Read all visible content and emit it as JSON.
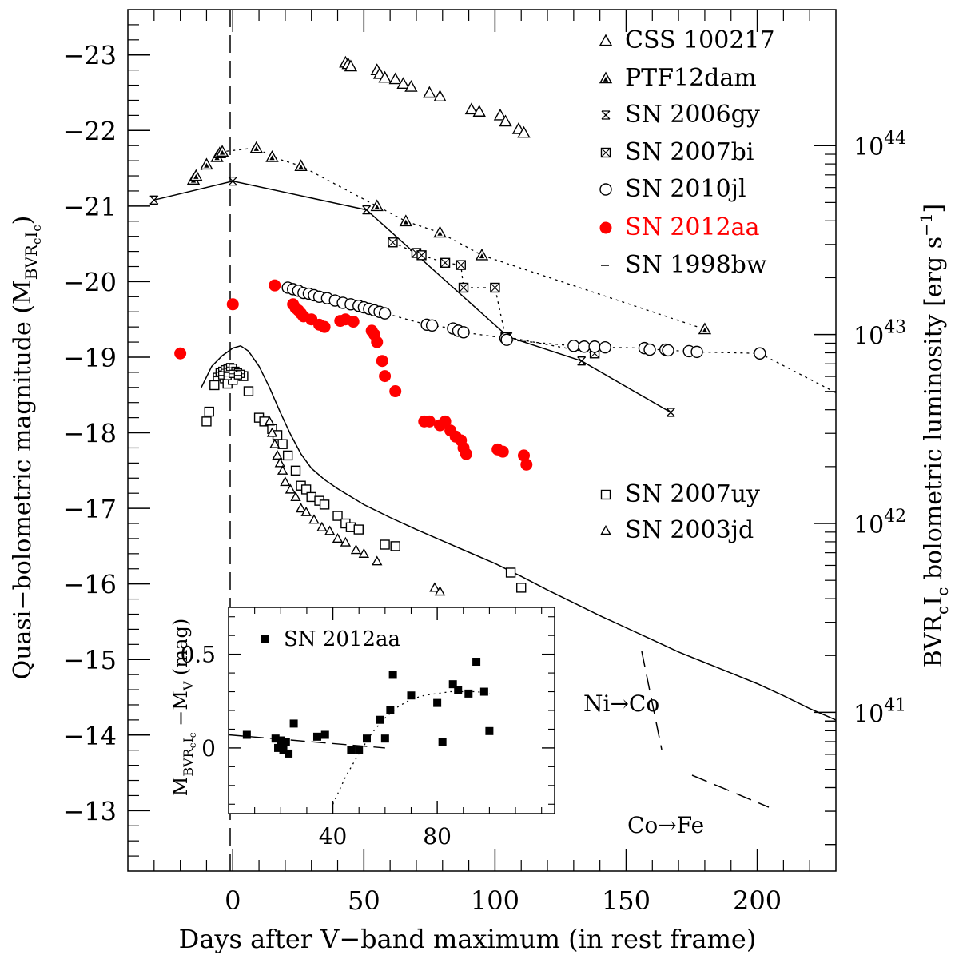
{
  "chart_data": {
    "type": "scatter",
    "xlabel": "Days after V−band maximum (in rest frame)",
    "ylabel": "Quasi−bolometric magnitude (M",
    "ylabel_sub": "BVR",
    "ylabel_subsub": "c",
    "ylabel_tail": "I",
    "ylabel_tail_sub": "c",
    "ylabel_close": ")",
    "right_ylabel": "BVR",
    "right_ylabel_sub": "c",
    "right_ylabel_tail": "I",
    "right_ylabel_tail_sub": "c",
    "right_ylabel_rest": " bolometric luminosity [erg s",
    "right_ylabel_sup": "−1",
    "right_ylabel_close": "]",
    "xlim": [
      -40,
      230
    ],
    "ylim": [
      -12.2,
      -23.6
    ],
    "x_ticks": [
      0,
      50,
      100,
      150,
      200
    ],
    "x_tick_labels": [
      "0",
      "50",
      "100",
      "150",
      "200"
    ],
    "y_ticks": [
      -13,
      -14,
      -15,
      -16,
      -17,
      -18,
      -19,
      -20,
      -21,
      -22,
      -23
    ],
    "y_tick_labels": [
      "−13",
      "−14",
      "−15",
      "−16",
      "−17",
      "−18",
      "−19",
      "−20",
      "−21",
      "−22",
      "−23"
    ],
    "right_ticks": [
      {
        "mag": -14.3,
        "base": "10",
        "exp": "41"
      },
      {
        "mag": -16.8,
        "base": "10",
        "exp": "42"
      },
      {
        "mag": -19.3,
        "base": "10",
        "exp": "43"
      },
      {
        "mag": -21.8,
        "base": "10",
        "exp": "44"
      }
    ],
    "series": [
      {
        "name": "CSS 100217",
        "marker": "triangle-open",
        "points": [
          [
            43,
            -22.9
          ],
          [
            44,
            -22.88
          ],
          [
            45,
            -22.85
          ],
          [
            55,
            -22.8
          ],
          [
            56,
            -22.75
          ],
          [
            58,
            -22.7
          ],
          [
            62,
            -22.68
          ],
          [
            65,
            -22.62
          ],
          [
            68,
            -22.58
          ],
          [
            75,
            -22.5
          ],
          [
            79,
            -22.45
          ],
          [
            91,
            -22.28
          ],
          [
            94,
            -22.25
          ],
          [
            102,
            -22.2
          ],
          [
            104,
            -22.12
          ],
          [
            109,
            -22.02
          ],
          [
            111,
            -21.97
          ]
        ]
      },
      {
        "name": "PTF12dam",
        "marker": "triangle-filled",
        "points": [
          [
            -15,
            -21.35
          ],
          [
            -14,
            -21.4
          ],
          [
            -10,
            -21.55
          ],
          [
            -6,
            -21.65
          ],
          [
            -5,
            -21.7
          ],
          [
            -4,
            -21.72
          ],
          [
            9,
            -21.77
          ],
          [
            15,
            -21.65
          ],
          [
            26,
            -21.53
          ],
          [
            55,
            -21
          ],
          [
            66,
            -20.8
          ],
          [
            79,
            -20.65
          ],
          [
            95,
            -20.35
          ],
          [
            180,
            -19.37
          ]
        ]
      },
      {
        "name": "SN 2006gy",
        "marker": "cross-star",
        "points": [
          [
            -30,
            -21.08
          ],
          [
            0,
            -21.33
          ],
          [
            51,
            -20.95
          ],
          [
            105,
            -19.27
          ],
          [
            133,
            -18.95
          ],
          [
            167,
            -18.27
          ]
        ]
      },
      {
        "name": "SN 2007bi",
        "marker": "square-x",
        "points": [
          [
            61,
            -20.52
          ],
          [
            70,
            -20.38
          ],
          [
            72,
            -20.35
          ],
          [
            81,
            -20.25
          ],
          [
            87,
            -20.22
          ],
          [
            88,
            -19.92
          ],
          [
            100,
            -19.92
          ],
          [
            104,
            -19.27
          ],
          [
            138,
            -19.05
          ]
        ]
      },
      {
        "name": "SN 2010jl",
        "marker": "circle-open",
        "points": [
          [
            21,
            -19.92
          ],
          [
            23,
            -19.9
          ],
          [
            25,
            -19.88
          ],
          [
            27,
            -19.85
          ],
          [
            29,
            -19.84
          ],
          [
            31,
            -19.82
          ],
          [
            33,
            -19.8
          ],
          [
            36,
            -19.78
          ],
          [
            39,
            -19.75
          ],
          [
            42,
            -19.72
          ],
          [
            45,
            -19.7
          ],
          [
            48,
            -19.68
          ],
          [
            50,
            -19.66
          ],
          [
            52,
            -19.64
          ],
          [
            54,
            -19.62
          ],
          [
            56,
            -19.6
          ],
          [
            58,
            -19.58
          ],
          [
            74,
            -19.43
          ],
          [
            76,
            -19.42
          ],
          [
            84,
            -19.38
          ],
          [
            86,
            -19.35
          ],
          [
            88,
            -19.33
          ],
          [
            104,
            -19.25
          ],
          [
            104.5,
            -19.23
          ],
          [
            130,
            -19.15
          ],
          [
            134,
            -19.14
          ],
          [
            138,
            -19.14
          ],
          [
            142,
            -19.13
          ],
          [
            157,
            -19.12
          ],
          [
            159,
            -19.1
          ],
          [
            165,
            -19.1
          ],
          [
            166,
            -19.09
          ],
          [
            174,
            -19.08
          ],
          [
            177,
            -19.07
          ],
          [
            201,
            -19.05
          ]
        ]
      },
      {
        "name": "SN 2012aa",
        "marker": "circle-red",
        "points": [
          [
            -20,
            -19.05
          ],
          [
            0,
            -19.7
          ],
          [
            16,
            -19.95
          ],
          [
            23,
            -19.7
          ],
          [
            24,
            -19.65
          ],
          [
            25,
            -19.62
          ],
          [
            26,
            -19.58
          ],
          [
            27,
            -19.54
          ],
          [
            30,
            -19.5
          ],
          [
            33,
            -19.43
          ],
          [
            35,
            -19.4
          ],
          [
            41,
            -19.48
          ],
          [
            43,
            -19.5
          ],
          [
            46,
            -19.47
          ],
          [
            53,
            -19.35
          ],
          [
            54,
            -19.3
          ],
          [
            55,
            -19.2
          ],
          [
            57,
            -18.95
          ],
          [
            58,
            -18.75
          ],
          [
            62,
            -18.55
          ],
          [
            73,
            -18.15
          ],
          [
            75,
            -18.15
          ],
          [
            79,
            -18.1
          ],
          [
            81,
            -18.15
          ],
          [
            83,
            -18.03
          ],
          [
            85,
            -17.95
          ],
          [
            87,
            -17.9
          ],
          [
            88,
            -17.8
          ],
          [
            89,
            -17.72
          ],
          [
            101,
            -17.78
          ],
          [
            103,
            -17.75
          ],
          [
            111,
            -17.7
          ],
          [
            112,
            -17.58
          ]
        ]
      },
      {
        "name": "SN 2007uy",
        "marker": "square-open",
        "points": [
          [
            -10,
            -18.15
          ],
          [
            -9,
            -18.28
          ],
          [
            -7,
            -18.63
          ],
          [
            -3,
            -18.72
          ],
          [
            -2,
            -18.65
          ],
          [
            0,
            -18.7
          ],
          [
            4,
            -18.75
          ],
          [
            6,
            -18.55
          ],
          [
            10,
            -18.2
          ],
          [
            12,
            -18.15
          ],
          [
            15,
            -18.05
          ],
          [
            17,
            -17.97
          ],
          [
            19,
            -17.85
          ],
          [
            21,
            -17.7
          ],
          [
            24,
            -17.5
          ],
          [
            26,
            -17.3
          ],
          [
            28,
            -17.25
          ],
          [
            30,
            -17.15
          ],
          [
            33,
            -17.1
          ],
          [
            35,
            -17.05
          ],
          [
            40,
            -16.9
          ],
          [
            43,
            -16.8
          ],
          [
            45,
            -16.75
          ],
          [
            48,
            -16.72
          ],
          [
            58,
            -16.52
          ],
          [
            62,
            -16.5
          ],
          [
            106,
            -16.15
          ],
          [
            110,
            -15.95
          ]
        ]
      },
      {
        "name": "SN 2003jd",
        "marker": "triangle-small",
        "points": [
          [
            14,
            -18.15
          ],
          [
            15,
            -18
          ],
          [
            16,
            -17.85
          ],
          [
            17,
            -17.7
          ],
          [
            18,
            -17.6
          ],
          [
            19,
            -17.5
          ],
          [
            20,
            -17.35
          ],
          [
            22,
            -17.25
          ],
          [
            24,
            -17.15
          ],
          [
            26,
            -17
          ],
          [
            28,
            -16.95
          ],
          [
            31,
            -16.85
          ],
          [
            34,
            -16.75
          ],
          [
            37,
            -16.7
          ],
          [
            40,
            -16.6
          ],
          [
            43,
            -16.55
          ],
          [
            47,
            -16.45
          ],
          [
            50,
            -16.4
          ],
          [
            55,
            -16.3
          ],
          [
            77,
            -15.95
          ],
          [
            79,
            -15.9
          ]
        ]
      }
    ],
    "cluster_near_zero": [
      [
        -6,
        -18.74
      ],
      [
        -5,
        -18.8
      ],
      [
        -4,
        -18.82
      ],
      [
        -3,
        -18.84
      ],
      [
        -2,
        -18.85
      ],
      [
        -1,
        -18.87
      ],
      [
        0,
        -18.86
      ],
      [
        1,
        -18.82
      ],
      [
        2,
        -18.8
      ],
      [
        3,
        -18.78
      ],
      [
        -4,
        -18.76
      ],
      [
        -2,
        -18.75
      ],
      [
        0,
        -18.78
      ],
      [
        2,
        -18.76
      ]
    ],
    "sn1998bw_curve": [
      [
        -12,
        -18.6
      ],
      [
        -8,
        -18.88
      ],
      [
        -4,
        -19.02
      ],
      [
        0,
        -19.12
      ],
      [
        3,
        -19.15
      ],
      [
        6,
        -19.08
      ],
      [
        10,
        -18.88
      ],
      [
        14,
        -18.6
      ],
      [
        18,
        -18.28
      ],
      [
        22,
        -17.98
      ],
      [
        26,
        -17.72
      ],
      [
        30,
        -17.53
      ],
      [
        35,
        -17.38
      ],
      [
        40,
        -17.26
      ],
      [
        50,
        -17.05
      ],
      [
        60,
        -16.88
      ],
      [
        70,
        -16.72
      ],
      [
        80,
        -16.57
      ],
      [
        90,
        -16.42
      ],
      [
        100,
        -16.27
      ],
      [
        110,
        -16.1
      ],
      [
        120,
        -15.92
      ],
      [
        130,
        -15.75
      ],
      [
        140,
        -15.58
      ],
      [
        150,
        -15.42
      ],
      [
        160,
        -15.26
      ],
      [
        170,
        -15.1
      ],
      [
        180,
        -14.96
      ],
      [
        190,
        -14.82
      ],
      [
        200,
        -14.68
      ],
      [
        210,
        -14.52
      ],
      [
        220,
        -14.35
      ],
      [
        230,
        -14.2
      ]
    ],
    "legend_top": [
      "CSS 100217",
      "PTF12dam",
      "SN 2006gy",
      "SN 2007bi",
      "SN 2010jl",
      "SN 2012aa",
      "SN 1998bw"
    ],
    "legend_bottom": [
      "SN 2007uy",
      "SN 2003jd"
    ],
    "annotations": {
      "ni_co": "Ni→Co",
      "co_fe": "Co→Fe"
    },
    "inset": {
      "title": "SN 2012aa",
      "xlabel_ticks": [
        40,
        80
      ],
      "xlim": [
        0,
        125
      ],
      "ylim": [
        -0.35,
        0.75
      ],
      "y_ticks": [
        0,
        0.5
      ],
      "y_tick_labels": [
        "0",
        "0.5"
      ],
      "ylabel_main": "M",
      "ylabel_sub": "BVR",
      "ylabel_subsub": "c",
      "ylabel_tail": "I",
      "ylabel_tail_sub": "c",
      "ylabel_rest": " −M",
      "ylabel_rest_sub": "V",
      "ylabel_unit": " (mag)",
      "points": [
        [
          7,
          0.07
        ],
        [
          18,
          0.05
        ],
        [
          19,
          0
        ],
        [
          20,
          0.04
        ],
        [
          21,
          -0.01
        ],
        [
          22,
          0.03
        ],
        [
          23,
          -0.03
        ],
        [
          25,
          0.13
        ],
        [
          34,
          0.06
        ],
        [
          37,
          0.07
        ],
        [
          47,
          -0.01
        ],
        [
          50,
          -0.01
        ],
        [
          53,
          0.05
        ],
        [
          58,
          0.15
        ],
        [
          60,
          0.05
        ],
        [
          62,
          0.2
        ],
        [
          63,
          0.39
        ],
        [
          70,
          0.28
        ],
        [
          80,
          0.24
        ],
        [
          82,
          0.03
        ],
        [
          86,
          0.34
        ],
        [
          88,
          0.31
        ],
        [
          92,
          0.29
        ],
        [
          95,
          0.46
        ],
        [
          98,
          0.3
        ],
        [
          100,
          0.09
        ]
      ],
      "dashed_line": [
        [
          0,
          0.07
        ],
        [
          60,
          0.0
        ]
      ],
      "dotted_curve": [
        [
          40,
          -0.3
        ],
        [
          45,
          -0.15
        ],
        [
          50,
          -0.03
        ],
        [
          55,
          0.08
        ],
        [
          60,
          0.16
        ],
        [
          65,
          0.22
        ],
        [
          70,
          0.26
        ],
        [
          75,
          0.28
        ],
        [
          80,
          0.29
        ],
        [
          85,
          0.3
        ],
        [
          90,
          0.3
        ],
        [
          95,
          0.3
        ],
        [
          100,
          0.29
        ]
      ]
    }
  }
}
